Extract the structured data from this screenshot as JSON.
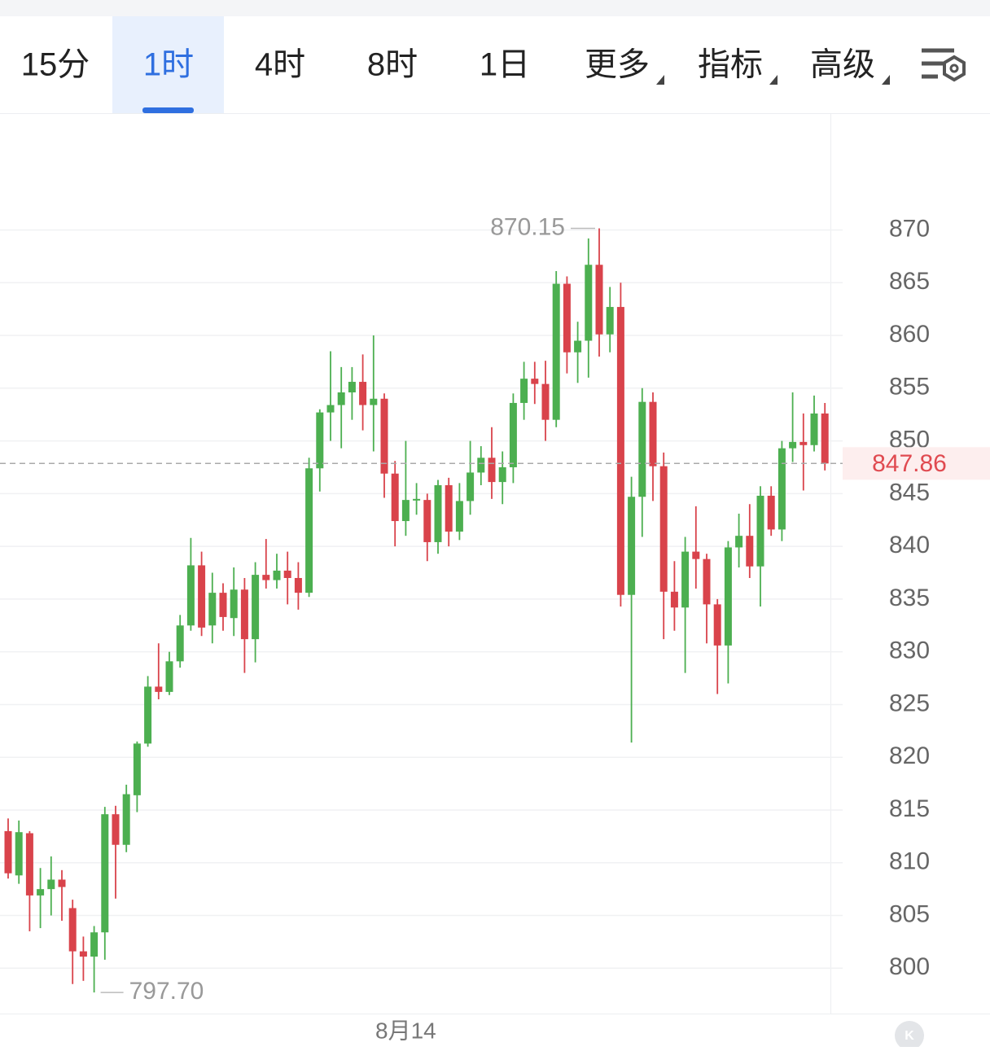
{
  "tabs": {
    "items": [
      "15分",
      "1时",
      "4时",
      "8时",
      "1日",
      "更多",
      "指标",
      "高级"
    ],
    "active": 1
  },
  "chart_data": {
    "type": "candlestick",
    "categories": [
      null,
      null,
      null,
      null,
      null,
      null,
      null,
      null,
      null,
      null,
      null,
      null,
      null,
      null,
      null,
      null,
      null,
      null,
      null,
      null,
      null,
      null,
      null,
      null,
      null,
      null,
      null,
      null,
      null,
      null,
      null,
      null,
      null,
      null,
      null,
      null,
      null,
      "8月14",
      null,
      null,
      null,
      null,
      null,
      null,
      null,
      null,
      null,
      null,
      null,
      null,
      null,
      null,
      null,
      null,
      null,
      null,
      null,
      null,
      null,
      null,
      null,
      null,
      null,
      null,
      null,
      null,
      null,
      null,
      null,
      null,
      null,
      null,
      null,
      null,
      null,
      null,
      null
    ],
    "open": [
      813,
      808.8,
      812.8,
      806.9,
      807.5,
      808.4,
      805.7,
      801.6,
      801.1,
      803.4,
      814.6,
      811.7,
      816.4,
      821.3,
      826.7,
      826.2,
      829.1,
      832.5,
      838.2,
      832.5,
      835.6,
      833.2,
      835.9,
      831.2,
      837.3,
      836.8,
      837.7,
      837,
      835.6,
      847.4,
      852.7,
      853.4,
      854.6,
      855.6,
      853.4,
      854,
      846.9,
      842.4,
      844.4,
      844.4,
      840.4,
      845.8,
      841.4,
      844.3,
      847,
      848.4,
      846.1,
      847.5,
      853.6,
      855.9,
      855.4,
      852,
      864.9,
      858.4,
      859.5,
      866.7,
      860.1,
      862.7,
      835.4,
      844.7,
      853.7,
      847.6,
      835.7,
      834.2,
      839.5,
      838.8,
      834.5,
      830.6,
      839.9,
      841,
      838.1,
      844.8,
      841.6,
      849.3,
      849.9,
      849.6,
      852.6
    ],
    "high": [
      814.2,
      814,
      813,
      809.5,
      810.6,
      809.3,
      806.5,
      803,
      804,
      815.3,
      815.4,
      817.4,
      821.5,
      827.7,
      830.8,
      830,
      833.5,
      840.8,
      839.5,
      837.5,
      836.5,
      838,
      837,
      838.5,
      840.7,
      839.3,
      839.5,
      838.5,
      848.4,
      853,
      858.5,
      857,
      857,
      858.2,
      860,
      854.5,
      848.1,
      850,
      846,
      845,
      846.3,
      846.5,
      846,
      850,
      849.5,
      851.3,
      849,
      854.5,
      857.5,
      857.5,
      857.6,
      866.1,
      865.6,
      861.3,
      869.2,
      870.15,
      864.6,
      865,
      846.6,
      855,
      854.6,
      848.9,
      838.6,
      840.9,
      843.8,
      839.3,
      835,
      840.5,
      843.1,
      844,
      845.7,
      845.7,
      850,
      854.6,
      852.6,
      854.3,
      853.6
    ],
    "low": [
      808.5,
      808,
      803.5,
      803.8,
      805,
      804.5,
      798.5,
      798.8,
      797.7,
      800.8,
      806.6,
      811,
      814.8,
      821,
      825.5,
      825.9,
      828.5,
      832,
      831.5,
      830.8,
      832,
      831.5,
      828,
      829,
      836,
      836,
      834.5,
      834,
      835.2,
      845.2,
      850,
      849.3,
      852,
      851,
      849,
      844.6,
      840,
      841,
      843,
      838.6,
      839.3,
      840,
      840.6,
      843,
      845.8,
      844.5,
      844,
      846,
      852,
      853.5,
      850,
      851.3,
      856.4,
      855.5,
      856,
      858,
      858.4,
      834.3,
      821.4,
      840.9,
      844.3,
      831.2,
      832,
      828,
      836,
      830.8,
      826,
      827,
      838,
      837,
      834.3,
      841,
      840.5,
      848,
      845.3,
      849,
      847.2
    ],
    "close": [
      809,
      812.9,
      806.9,
      807.5,
      808.4,
      807.7,
      801.6,
      801.1,
      803.4,
      814.6,
      811.7,
      816.5,
      821.3,
      826.7,
      826.2,
      829.1,
      832.5,
      838.2,
      832.3,
      835.6,
      833.3,
      835.9,
      831.2,
      837.3,
      836.8,
      837.7,
      837,
      835.6,
      847.4,
      852.7,
      853.4,
      854.6,
      855.6,
      853.4,
      854,
      846.9,
      842.4,
      844.4,
      844.5,
      840.4,
      845.8,
      841.4,
      844.3,
      847,
      848.4,
      846.1,
      847.5,
      853.6,
      855.9,
      855.4,
      852,
      864.9,
      858.4,
      859.5,
      866.7,
      860.1,
      862.7,
      835.4,
      844.7,
      853.7,
      847.6,
      835.7,
      834.2,
      839.5,
      838.8,
      834.5,
      830.6,
      839.9,
      841,
      838.1,
      844.8,
      841.6,
      849.3,
      849.9,
      849.6,
      852.6,
      847.86
    ],
    "up_color": "#4caf50",
    "down_color": "#d9434b",
    "ylim": [
      795.7,
      881
    ],
    "yticks": [
      800,
      805,
      810,
      815,
      820,
      825,
      830,
      835,
      840,
      845,
      850,
      855,
      860,
      865,
      870
    ],
    "grid": true,
    "annotations": {
      "high": 870.15,
      "low": {
        "value": 797.7,
        "label": "797.70"
      },
      "last": 847.86
    }
  }
}
